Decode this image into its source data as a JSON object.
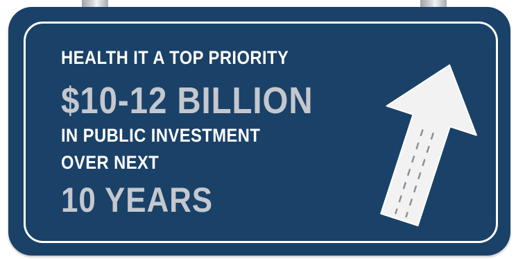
{
  "sign": {
    "line1": "HEALTH IT A TOP PRIORITY",
    "line2": "$10-12 BILLION",
    "line3": "IN PUBLIC INVESTMENT",
    "line4": "OVER NEXT",
    "line5": "10 YEARS"
  },
  "colors": {
    "sign_background": "#1a4168",
    "text_primary": "#ffffff",
    "text_accent": "#c4c8ce",
    "arrow_fill": "#f2f2f2",
    "arrow_dash": "#8a9096"
  },
  "icons": {
    "arrow": "up-arrow-icon"
  }
}
